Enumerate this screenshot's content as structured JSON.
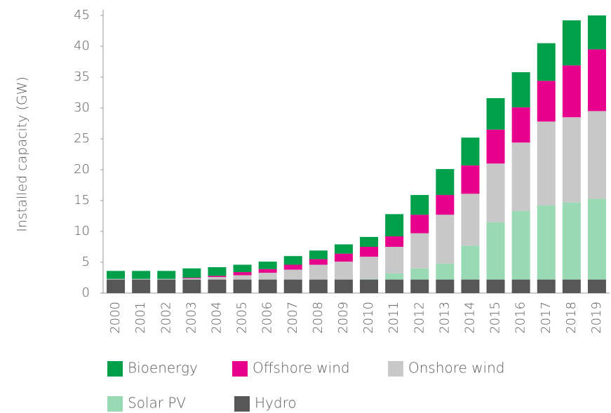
{
  "chart_data": {
    "type": "stacked_bar",
    "y_label": "Installed capacity (GW)",
    "categories": [
      "2000",
      "2001",
      "2002",
      "2003",
      "2004",
      "2005",
      "2006",
      "2007",
      "2008",
      "2009",
      "2010",
      "2011",
      "2012",
      "2013",
      "2014",
      "2015",
      "2016",
      "2017",
      "2018",
      "2019"
    ],
    "series": [
      {
        "name": "Hydro",
        "color": "#575757",
        "values": [
          2.2,
          2.2,
          2.2,
          2.2,
          2.2,
          2.2,
          2.2,
          2.2,
          2.2,
          2.2,
          2.2,
          2.2,
          2.2,
          2.2,
          2.2,
          2.2,
          2.2,
          2.2,
          2.2,
          2.2
        ]
      },
      {
        "name": "Solar PV",
        "color": "#99d9b4",
        "values": [
          0,
          0,
          0,
          0,
          0,
          0,
          0,
          0,
          0,
          0,
          0.1,
          1.0,
          1.8,
          2.6,
          5.5,
          9.3,
          11.1,
          12.0,
          12.5,
          13.1
        ]
      },
      {
        "name": "Onshore wind",
        "color": "#c8c8c8",
        "values": [
          0.1,
          0.1,
          0.1,
          0.2,
          0.4,
          0.7,
          1.1,
          1.6,
          2.4,
          2.9,
          3.6,
          4.3,
          5.7,
          7.9,
          8.4,
          9.5,
          11.1,
          13.6,
          13.8,
          14.2
        ]
      },
      {
        "name": "Offshore wind",
        "color": "#e6008c",
        "values": [
          0,
          0,
          0,
          0.1,
          0.2,
          0.5,
          0.6,
          0.8,
          0.9,
          1.3,
          1.6,
          1.7,
          3.0,
          3.2,
          4.6,
          5.5,
          5.7,
          6.6,
          8.4,
          10.0
        ]
      },
      {
        "name": "Bioenergy",
        "color": "#00a04b",
        "values": [
          1.3,
          1.3,
          1.3,
          1.5,
          1.4,
          1.2,
          1.2,
          1.4,
          1.4,
          1.5,
          1.6,
          3.6,
          3.2,
          4.2,
          4.5,
          5.1,
          5.7,
          6.1,
          7.3,
          5.5
        ]
      }
    ],
    "ylim": [
      0,
      45
    ],
    "yticks": [
      0,
      5,
      10,
      15,
      20,
      25,
      30,
      35,
      40,
      45
    ],
    "grid": false
  }
}
